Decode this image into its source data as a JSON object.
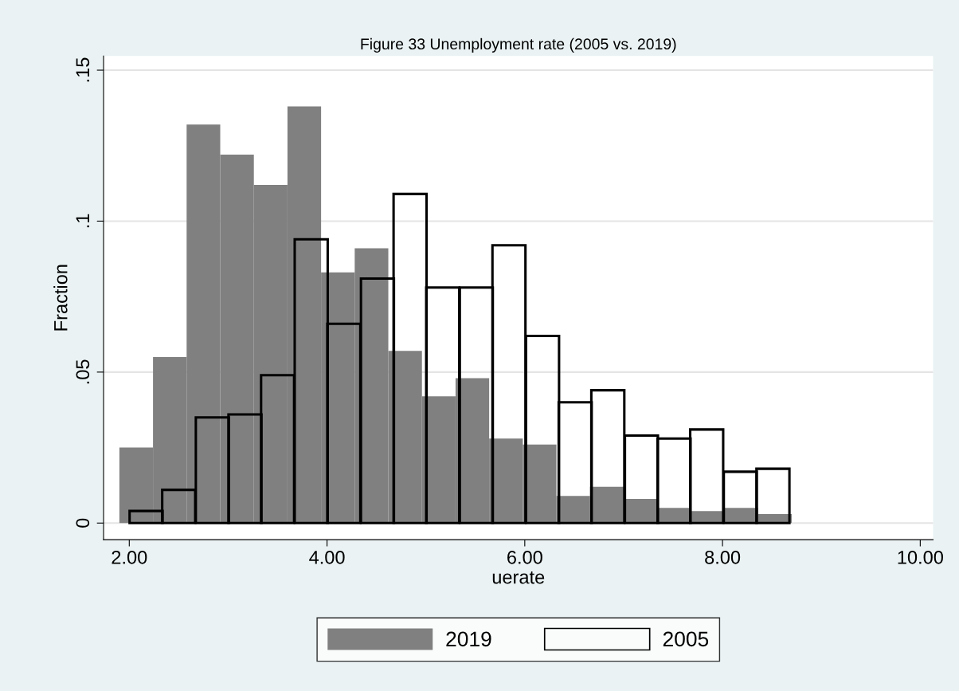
{
  "chart_data": {
    "type": "bar",
    "title": "Figure 33 Unemployment rate (2005 vs. 2019)",
    "xlabel": "uerate",
    "ylabel": "Fraction",
    "series": [
      {
        "name": "2019",
        "color": "#808080",
        "x": [
          2.07,
          2.41,
          2.75,
          3.09,
          3.43,
          3.77,
          4.11,
          4.45,
          4.79,
          5.13,
          5.47,
          5.81,
          6.15,
          6.49,
          6.83,
          7.17,
          7.51,
          7.85,
          8.19,
          8.53
        ],
        "values": [
          0.025,
          0.055,
          0.132,
          0.122,
          0.112,
          0.138,
          0.083,
          0.091,
          0.057,
          0.042,
          0.048,
          0.028,
          0.026,
          0.009,
          0.012,
          0.008,
          0.005,
          0.004,
          0.005,
          0.003
        ]
      },
      {
        "name": "2005",
        "color": "#000000",
        "x": [
          2.17,
          2.5,
          2.84,
          3.17,
          3.5,
          3.84,
          4.17,
          4.51,
          4.84,
          5.17,
          5.51,
          5.84,
          6.18,
          6.51,
          6.84,
          7.18,
          7.51,
          7.84,
          8.18,
          8.51
        ],
        "values": [
          0.004,
          0.011,
          0.035,
          0.036,
          0.049,
          0.094,
          0.066,
          0.081,
          0.109,
          0.078,
          0.078,
          0.092,
          0.062,
          0.04,
          0.044,
          0.029,
          0.028,
          0.031,
          0.017,
          0.018
        ]
      }
    ],
    "xlim": [
      1.74,
      10.13
    ],
    "ylim": [
      -0.0055,
      0.1547
    ],
    "xticks": [
      {
        "value": 2,
        "label": "2.00"
      },
      {
        "value": 4,
        "label": "4.00"
      },
      {
        "value": 6,
        "label": "6.00"
      },
      {
        "value": 8,
        "label": "8.00"
      },
      {
        "value": 10,
        "label": "10.00"
      }
    ],
    "yticks": [
      0,
      {
        "value": 0.05,
        "label": ".05"
      },
      {
        "value": 0.1,
        "label": ".1"
      },
      {
        "value": 0.15,
        "label": ".15"
      }
    ],
    "grid": "y",
    "legend": "bottom"
  }
}
